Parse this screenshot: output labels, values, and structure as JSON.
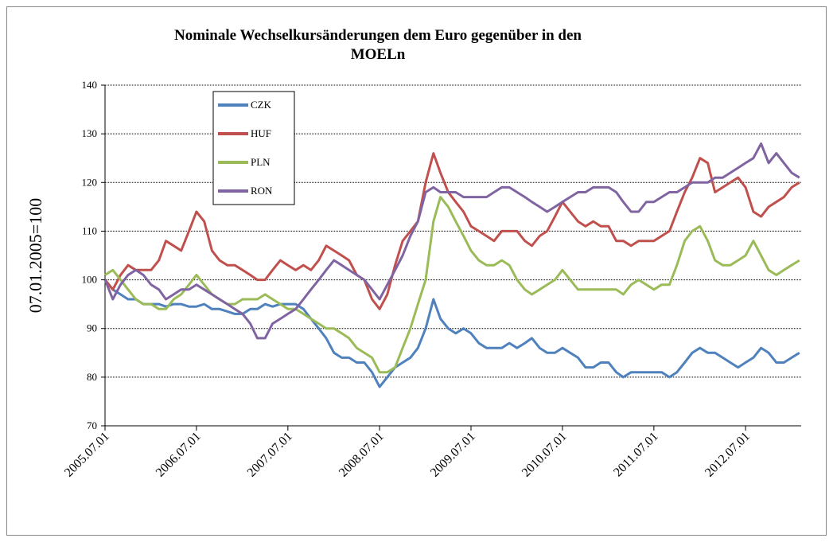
{
  "chart_data": {
    "type": "line",
    "title": [
      "Nominale Wechselkursänderungen dem Euro gegenüber in den",
      "MOELn"
    ],
    "y_label": "07.01.2005=100",
    "x": [
      "2005.07.01",
      "2005.08.01",
      "2005.09.01",
      "2005.10.01",
      "2005.11.01",
      "2005.12.01",
      "2006.01.01",
      "2006.02.01",
      "2006.03.01",
      "2006.04.01",
      "2006.05.01",
      "2006.06.01",
      "2006.07.01",
      "2006.08.01",
      "2006.09.01",
      "2006.10.01",
      "2006.11.01",
      "2006.12.01",
      "2007.01.01",
      "2007.02.01",
      "2007.03.01",
      "2007.04.01",
      "2007.05.01",
      "2007.06.01",
      "2007.07.01",
      "2007.08.01",
      "2007.09.01",
      "2007.10.01",
      "2007.11.01",
      "2007.12.01",
      "2008.01.01",
      "2008.02.01",
      "2008.03.01",
      "2008.04.01",
      "2008.05.01",
      "2008.06.01",
      "2008.07.01",
      "2008.08.01",
      "2008.09.01",
      "2008.10.01",
      "2008.11.01",
      "2008.12.01",
      "2009.01.01",
      "2009.02.01",
      "2009.03.01",
      "2009.04.01",
      "2009.05.01",
      "2009.06.01",
      "2009.07.01",
      "2009.08.01",
      "2009.09.01",
      "2009.10.01",
      "2009.11.01",
      "2009.12.01",
      "2010.01.01",
      "2010.02.01",
      "2010.03.01",
      "2010.04.01",
      "2010.05.01",
      "2010.06.01",
      "2010.07.01",
      "2010.08.01",
      "2010.09.01",
      "2010.10.01",
      "2010.11.01",
      "2010.12.01",
      "2011.01.01",
      "2011.02.01",
      "2011.03.01",
      "2011.04.01",
      "2011.05.01",
      "2011.06.01",
      "2011.07.01",
      "2011.08.01",
      "2011.09.01",
      "2011.10.01",
      "2011.11.01",
      "2011.12.01",
      "2012.01.01",
      "2012.02.01",
      "2012.03.01",
      "2012.04.01",
      "2012.05.01",
      "2012.06.01",
      "2012.07.01",
      "2012.08.01",
      "2012.09.01",
      "2012.10.01",
      "2012.11.01",
      "2012.12.01",
      "2013.01.01",
      "2013.02.01"
    ],
    "series": [
      {
        "name": "CZK",
        "color": "#4f81bd",
        "values": [
          100,
          98,
          97,
          96,
          96,
          95,
          95,
          95,
          94.5,
          95,
          95,
          94.5,
          94.5,
          95,
          94,
          94,
          93.5,
          93,
          93,
          94,
          94,
          95,
          94.5,
          95,
          95,
          95,
          94,
          92,
          90,
          88,
          85,
          84,
          84,
          83,
          83,
          81,
          78,
          80,
          82,
          83,
          84,
          86,
          90,
          96,
          92,
          90,
          89,
          90,
          89,
          87,
          86,
          86,
          86,
          87,
          86,
          87,
          88,
          86,
          85,
          85,
          86,
          85,
          84,
          82,
          82,
          83,
          83,
          81,
          80,
          81,
          81,
          81,
          81,
          81,
          80,
          81,
          83,
          85,
          86,
          85,
          85,
          84,
          83,
          82,
          83,
          84,
          86,
          85,
          83,
          83,
          84,
          85
        ]
      },
      {
        "name": "HUF",
        "color": "#c0504d",
        "values": [
          100,
          98,
          101,
          103,
          102,
          102,
          102,
          104,
          108,
          107,
          106,
          110,
          114,
          112,
          106,
          104,
          103,
          103,
          102,
          101,
          100,
          100,
          102,
          104,
          103,
          102,
          103,
          102,
          104,
          107,
          106,
          105,
          104,
          101,
          100,
          96,
          94,
          97,
          103,
          108,
          110,
          112,
          120,
          126,
          122,
          118,
          116,
          114,
          111,
          110,
          109,
          108,
          110,
          110,
          110,
          108,
          107,
          109,
          110,
          113,
          116,
          114,
          112,
          111,
          112,
          111,
          111,
          108,
          108,
          107,
          108,
          108,
          108,
          109,
          110,
          114,
          118,
          121,
          125,
          124,
          118,
          119,
          120,
          121,
          119,
          114,
          113,
          115,
          116,
          117,
          119,
          120
        ]
      },
      {
        "name": "PLN",
        "color": "#9bbb59",
        "values": [
          101,
          102,
          100,
          98,
          96,
          95,
          95,
          94,
          94,
          96,
          97,
          99,
          101,
          99,
          97,
          96,
          95,
          95,
          96,
          96,
          96,
          97,
          96,
          95,
          94,
          94,
          93,
          92,
          91,
          90,
          90,
          89,
          88,
          86,
          85,
          84,
          81,
          81,
          82,
          86,
          90,
          95,
          100,
          112,
          117,
          115,
          112,
          109,
          106,
          104,
          103,
          103,
          104,
          103,
          100,
          98,
          97,
          98,
          99,
          100,
          102,
          100,
          98,
          98,
          98,
          98,
          98,
          98,
          97,
          99,
          100,
          99,
          98,
          99,
          99,
          103,
          108,
          110,
          111,
          108,
          104,
          103,
          103,
          104,
          105,
          108,
          105,
          102,
          101,
          102,
          103,
          104
        ]
      },
      {
        "name": "RON",
        "color": "#8064a2",
        "values": [
          100,
          96,
          99,
          101,
          102,
          101,
          99,
          98,
          96,
          97,
          98,
          98,
          99,
          98,
          97,
          96,
          95,
          94,
          93,
          91,
          88,
          88,
          91,
          92,
          93,
          94,
          96,
          98,
          100,
          102,
          104,
          103,
          102,
          101,
          100,
          98,
          96,
          99,
          102,
          105,
          109,
          112,
          118,
          119,
          118,
          118,
          118,
          117,
          117,
          117,
          117,
          118,
          119,
          119,
          118,
          117,
          116,
          115,
          114,
          115,
          116,
          117,
          118,
          118,
          119,
          119,
          119,
          118,
          116,
          114,
          114,
          116,
          116,
          117,
          118,
          118,
          119,
          120,
          120,
          120,
          121,
          121,
          122,
          123,
          124,
          125,
          128,
          124,
          126,
          124,
          122,
          121
        ]
      }
    ],
    "xlim": [
      "2005.07.01",
      "2013.02.08"
    ],
    "xticks": [
      "2005.07.01",
      "2006.07.01",
      "2007.07.01",
      "2008.07.01",
      "2009.07.01",
      "2010.07.01",
      "2011.07.01",
      "2012.07.01"
    ],
    "ylim": [
      70,
      140
    ],
    "yticks": [
      70,
      80,
      90,
      100,
      110,
      120,
      130,
      140
    ],
    "grid": true,
    "legend": "top-left"
  }
}
